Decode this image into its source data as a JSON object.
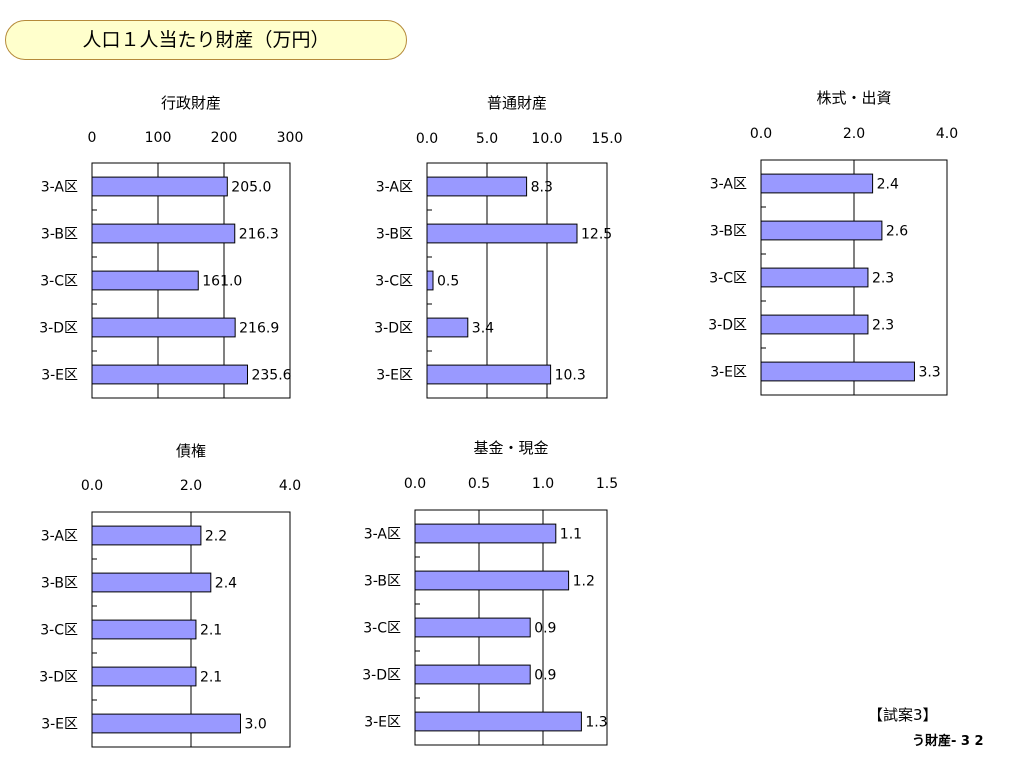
{
  "page": {
    "title": "人口１人当たり財産（万円）",
    "plan_label": "【試案3】",
    "page_number": "う財産- 3 2"
  },
  "colors": {
    "bar_fill": "#9999ff",
    "bar_stroke": "#000000",
    "title_bg": "#ffffcc",
    "title_border": "#b58a3a"
  },
  "chart_data": [
    {
      "type": "bar",
      "orientation": "horizontal",
      "title": "行政財産",
      "categories": [
        "3-A区",
        "3-B区",
        "3-C区",
        "3-D区",
        "3-E区"
      ],
      "values": [
        205.0,
        216.3,
        161.0,
        216.9,
        235.6
      ],
      "value_labels": [
        "205.0",
        "216.3",
        "161.0",
        "216.9",
        "235.6"
      ],
      "xlim": [
        0,
        300
      ],
      "ticks": [
        0,
        100,
        200,
        300
      ],
      "tick_labels": [
        "0",
        "100",
        "200",
        "300"
      ],
      "grid": true,
      "legend": "none"
    },
    {
      "type": "bar",
      "orientation": "horizontal",
      "title": "普通財産",
      "categories": [
        "3-A区",
        "3-B区",
        "3-C区",
        "3-D区",
        "3-E区"
      ],
      "values": [
        8.3,
        12.5,
        0.5,
        3.4,
        10.3
      ],
      "value_labels": [
        "8.3",
        "12.5",
        "0.5",
        "3.4",
        "10.3"
      ],
      "xlim": [
        0,
        15
      ],
      "ticks": [
        0,
        5,
        10,
        15
      ],
      "tick_labels": [
        "0.0",
        "5.0",
        "10.0",
        "15.0"
      ],
      "grid": true,
      "legend": "none"
    },
    {
      "type": "bar",
      "orientation": "horizontal",
      "title": "株式・出資",
      "categories": [
        "3-A区",
        "3-B区",
        "3-C区",
        "3-D区",
        "3-E区"
      ],
      "values": [
        2.4,
        2.6,
        2.3,
        2.3,
        3.3
      ],
      "value_labels": [
        "2.4",
        "2.6",
        "2.3",
        "2.3",
        "3.3"
      ],
      "xlim": [
        0,
        4
      ],
      "ticks": [
        0,
        2,
        4
      ],
      "tick_labels": [
        "0.0",
        "2.0",
        "4.0"
      ],
      "grid": true,
      "legend": "none"
    },
    {
      "type": "bar",
      "orientation": "horizontal",
      "title": "債権",
      "categories": [
        "3-A区",
        "3-B区",
        "3-C区",
        "3-D区",
        "3-E区"
      ],
      "values": [
        2.2,
        2.4,
        2.1,
        2.1,
        3.0
      ],
      "value_labels": [
        "2.2",
        "2.4",
        "2.1",
        "2.1",
        "3.0"
      ],
      "xlim": [
        0,
        4
      ],
      "ticks": [
        0,
        2,
        4
      ],
      "tick_labels": [
        "0.0",
        "2.0",
        "4.0"
      ],
      "grid": true,
      "legend": "none"
    },
    {
      "type": "bar",
      "orientation": "horizontal",
      "title": "基金・現金",
      "categories": [
        "3-A区",
        "3-B区",
        "3-C区",
        "3-D区",
        "3-E区"
      ],
      "values": [
        1.1,
        1.2,
        0.9,
        0.9,
        1.3
      ],
      "value_labels": [
        "1.1",
        "1.2",
        "0.9",
        "0.9",
        "1.3"
      ],
      "xlim": [
        0,
        1.5
      ],
      "ticks": [
        0,
        0.5,
        1.0,
        1.5
      ],
      "tick_labels": [
        "0.0",
        "0.5",
        "1.0",
        "1.5"
      ],
      "grid": true,
      "legend": "none"
    }
  ]
}
